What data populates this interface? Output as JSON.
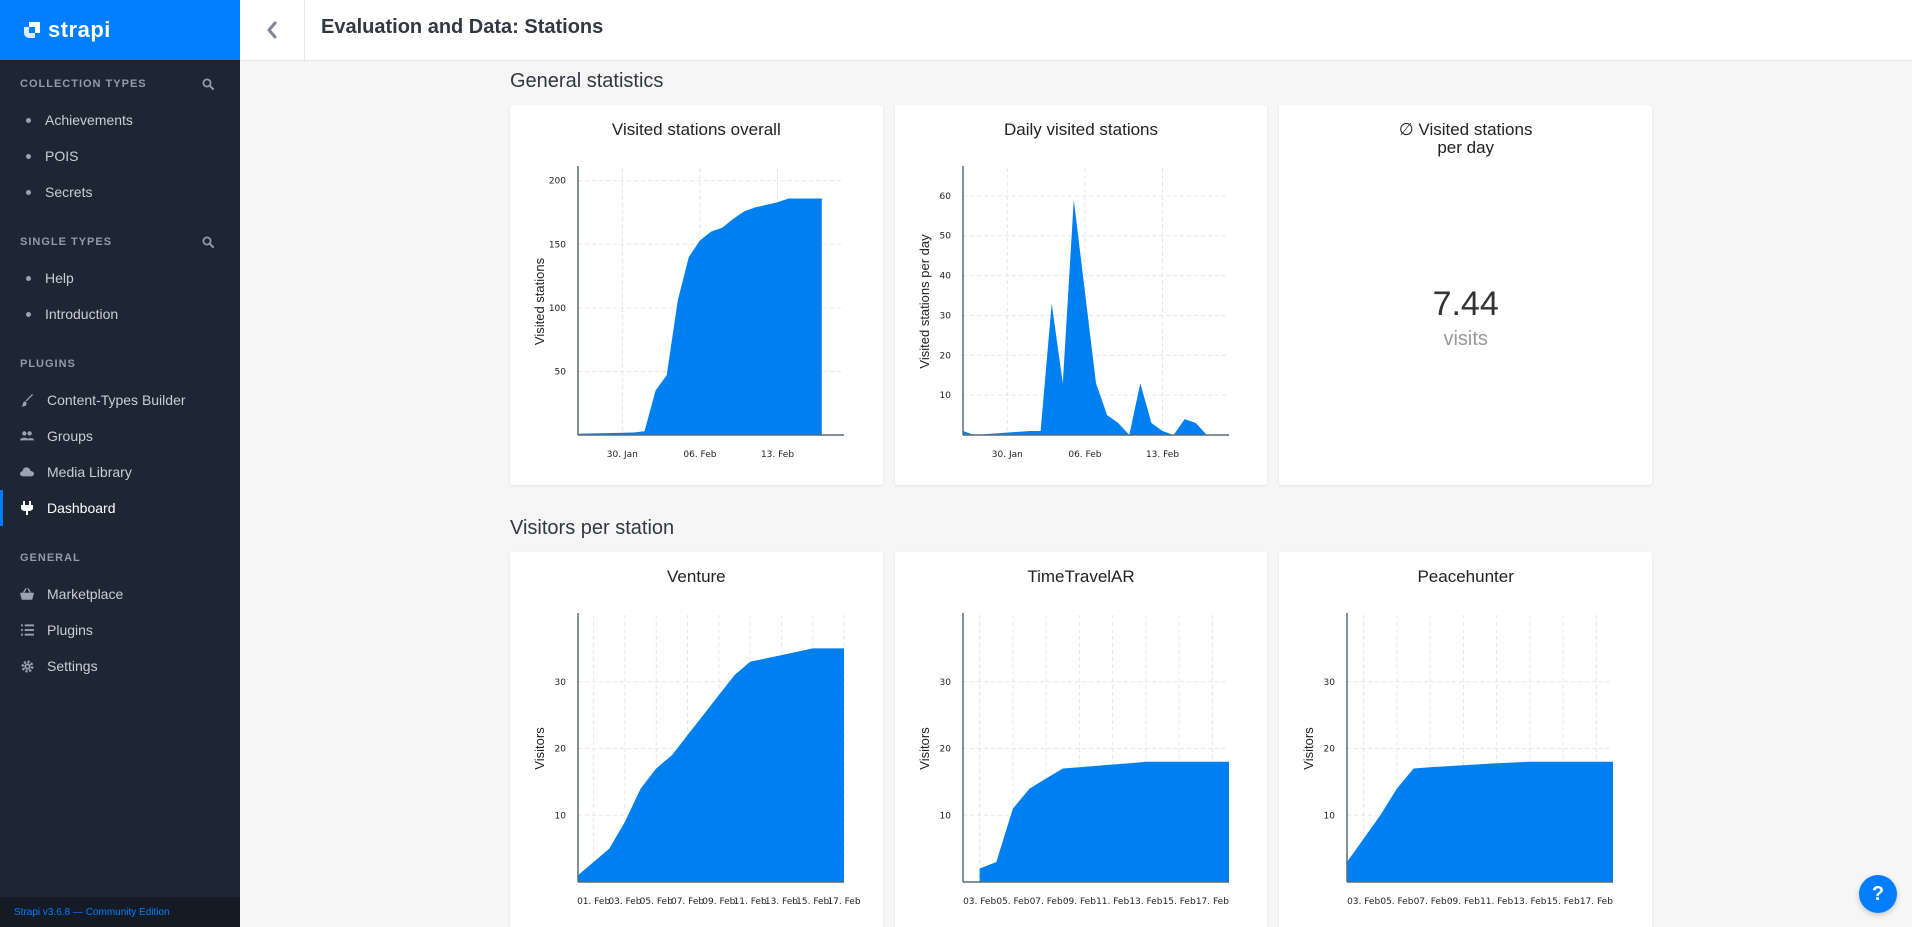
{
  "brand": {
    "name": "strapi"
  },
  "sidebar": {
    "sections": [
      {
        "title": "COLLECTION TYPES",
        "searchable": true,
        "items": [
          {
            "label": "Achievements",
            "icon": "dot"
          },
          {
            "label": "POIS",
            "icon": "dot"
          },
          {
            "label": "Secrets",
            "icon": "dot"
          }
        ]
      },
      {
        "title": "SINGLE TYPES",
        "searchable": true,
        "items": [
          {
            "label": "Help",
            "icon": "dot"
          },
          {
            "label": "Introduction",
            "icon": "dot"
          }
        ]
      },
      {
        "title": "PLUGINS",
        "searchable": false,
        "items": [
          {
            "label": "Content-Types Builder",
            "icon": "brush-icon"
          },
          {
            "label": "Groups",
            "icon": "users-icon"
          },
          {
            "label": "Media Library",
            "icon": "cloud-icon"
          },
          {
            "label": "Dashboard",
            "icon": "plug-icon",
            "active": true
          }
        ]
      },
      {
        "title": "GENERAL",
        "searchable": false,
        "items": [
          {
            "label": "Marketplace",
            "icon": "basket-icon"
          },
          {
            "label": "Plugins",
            "icon": "list-icon"
          },
          {
            "label": "Settings",
            "icon": "gear-icon"
          }
        ]
      }
    ],
    "footer": "Strapi v3.6.8 — Community Edition"
  },
  "header": {
    "title": "Evaluation and Data: Stations"
  },
  "sections": {
    "general": "General statistics",
    "visitors": "Visitors per station"
  },
  "average": {
    "title_line1": "∅ Visited stations",
    "title_line2": "per day",
    "value": "7.44",
    "unit": "visits"
  },
  "colors": {
    "accent": "#007eff",
    "sidebar": "#1e2633",
    "area": "#0080f0"
  },
  "help": {
    "label": "?"
  },
  "chart_data": [
    {
      "type": "area",
      "title": "Visited stations overall",
      "ylabel": "Visited stations",
      "xlabel": "",
      "x": [
        "2022-01-26",
        "2022-01-31",
        "2022-02-01",
        "2022-02-02",
        "2022-02-03",
        "2022-02-04",
        "2022-02-05",
        "2022-02-06",
        "2022-02-07",
        "2022-02-08",
        "2022-02-09",
        "2022-02-10",
        "2022-02-11",
        "2022-02-12",
        "2022-02-13",
        "2022-02-14",
        "2022-02-15",
        "2022-02-16",
        "2022-02-17"
      ],
      "y": [
        1,
        2,
        3,
        35,
        47,
        106,
        140,
        153,
        160,
        163,
        170,
        176,
        179,
        181,
        183,
        186,
        186,
        186,
        186
      ],
      "xticks": [
        "30. Jan",
        "06. Feb",
        "13. Feb"
      ],
      "xtick_values": [
        "2022-01-30",
        "2022-02-06",
        "2022-02-13"
      ],
      "yticks": [
        50,
        100,
        150,
        200
      ],
      "ylim": [
        0,
        210
      ],
      "xlim": [
        "2022-01-26",
        "2022-02-19"
      ],
      "grid": true
    },
    {
      "type": "area",
      "title": "Daily visited stations",
      "ylabel": "Visited stations per day",
      "xlabel": "",
      "x": [
        "2022-01-26",
        "2022-01-27",
        "2022-02-01",
        "2022-02-02",
        "2022-02-03",
        "2022-02-04",
        "2022-02-05",
        "2022-02-06",
        "2022-02-07",
        "2022-02-08",
        "2022-02-09",
        "2022-02-10",
        "2022-02-11",
        "2022-02-12",
        "2022-02-13",
        "2022-02-14",
        "2022-02-15",
        "2022-02-16",
        "2022-02-17",
        "2022-02-18",
        "2022-02-19"
      ],
      "y": [
        1,
        0,
        1,
        1,
        33,
        13,
        59,
        36,
        13,
        5,
        3,
        0,
        13,
        3,
        1,
        0,
        4,
        3,
        0,
        0,
        0
      ],
      "xticks": [
        "30. Jan",
        "06. Feb",
        "13. Feb"
      ],
      "xtick_values": [
        "2022-01-30",
        "2022-02-06",
        "2022-02-13"
      ],
      "yticks": [
        10,
        20,
        30,
        40,
        50,
        60
      ],
      "ylim": [
        0,
        67
      ],
      "xlim": [
        "2022-01-26",
        "2022-02-19"
      ],
      "grid": true
    },
    {
      "type": "area",
      "title": "Venture",
      "ylabel": "Visitors",
      "xlabel": "",
      "x": [
        "2022-01-31",
        "2022-02-01",
        "2022-02-02",
        "2022-02-03",
        "2022-02-04",
        "2022-02-05",
        "2022-02-06",
        "2022-02-07",
        "2022-02-08",
        "2022-02-09",
        "2022-02-10",
        "2022-02-11",
        "2022-02-12",
        "2022-02-13",
        "2022-02-14",
        "2022-02-15",
        "2022-02-16",
        "2022-02-17"
      ],
      "y": [
        1,
        3,
        5,
        9,
        14,
        17,
        19,
        22,
        25,
        28,
        31,
        33,
        33.5,
        34,
        34.5,
        35,
        35,
        35
      ],
      "xticks": [
        "01. Feb",
        "03. Feb",
        "05. Feb",
        "07. Feb",
        "09. Feb",
        "11. Feb",
        "13. Feb",
        "15. Feb",
        "17. Feb"
      ],
      "xtick_values": [
        "2022-02-01",
        "2022-02-03",
        "2022-02-05",
        "2022-02-07",
        "2022-02-09",
        "2022-02-11",
        "2022-02-13",
        "2022-02-15",
        "2022-02-17"
      ],
      "yticks": [
        10,
        20,
        30
      ],
      "ylim": [
        0,
        40
      ],
      "xlim": [
        "2022-01-31",
        "2022-02-17"
      ],
      "grid": true
    },
    {
      "type": "area",
      "title": "TimeTravelAR",
      "ylabel": "Visitors",
      "xlabel": "",
      "x": [
        "2022-02-03",
        "2022-02-04",
        "2022-02-05",
        "2022-02-06",
        "2022-02-07",
        "2022-02-08",
        "2022-02-09",
        "2022-02-10",
        "2022-02-11",
        "2022-02-12",
        "2022-02-13",
        "2022-02-14",
        "2022-02-15",
        "2022-02-16",
        "2022-02-17",
        "2022-02-18"
      ],
      "y": [
        2,
        3,
        11,
        14,
        15.5,
        17,
        17.2,
        17.4,
        17.6,
        17.8,
        18,
        18,
        18,
        18,
        18,
        18
      ],
      "xticks": [
        "03. Feb",
        "05. Feb",
        "07. Feb",
        "09. Feb",
        "11. Feb",
        "13. Feb",
        "15. Feb",
        "17. Feb"
      ],
      "xtick_values": [
        "2022-02-03",
        "2022-02-05",
        "2022-02-07",
        "2022-02-09",
        "2022-02-11",
        "2022-02-13",
        "2022-02-15",
        "2022-02-17"
      ],
      "yticks": [
        10,
        20,
        30
      ],
      "ylim": [
        0,
        40
      ],
      "xlim": [
        "2022-02-02",
        "2022-02-18"
      ],
      "grid": true
    },
    {
      "type": "area",
      "title": "Peacehunter",
      "ylabel": "Visitors",
      "xlabel": "",
      "x": [
        "2022-02-02",
        "2022-02-04",
        "2022-02-05",
        "2022-02-06",
        "2022-02-07",
        "2022-02-09",
        "2022-02-11",
        "2022-02-13",
        "2022-02-15",
        "2022-02-17",
        "2022-02-18"
      ],
      "y": [
        3,
        10,
        14,
        17,
        17.2,
        17.5,
        17.8,
        18,
        18,
        18,
        18
      ],
      "xticks": [
        "03. Feb",
        "05. Feb",
        "07. Feb",
        "09. Feb",
        "11. Feb",
        "13. Feb",
        "15. Feb",
        "17. Feb"
      ],
      "xtick_values": [
        "2022-02-03",
        "2022-02-05",
        "2022-02-07",
        "2022-02-09",
        "2022-02-11",
        "2022-02-13",
        "2022-02-15",
        "2022-02-17"
      ],
      "yticks": [
        10,
        20,
        30
      ],
      "ylim": [
        0,
        40
      ],
      "xlim": [
        "2022-02-02",
        "2022-02-18"
      ],
      "grid": true
    }
  ]
}
